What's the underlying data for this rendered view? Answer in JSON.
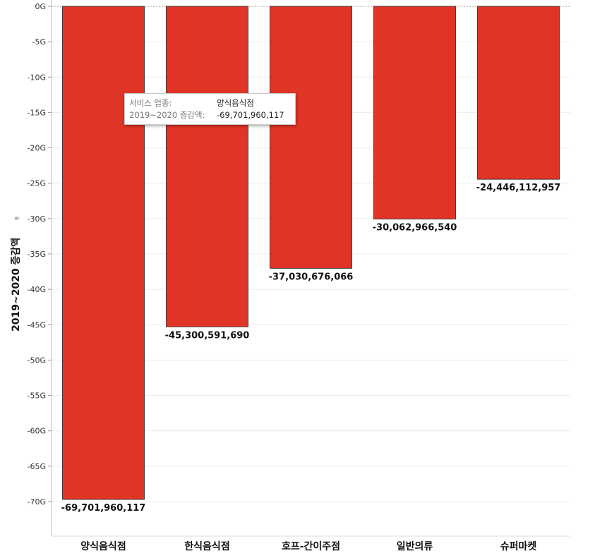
{
  "chart_data": {
    "type": "bar",
    "categories": [
      "양식음식점",
      "한식음식점",
      "호프-간이주점",
      "일반의류",
      "슈퍼마켓"
    ],
    "values": [
      -69701960117,
      -45300591690,
      -37030676066,
      -30062966540,
      -24446112957
    ],
    "value_labels": [
      "-69,701,960,117",
      "-45,300,591,690",
      "-37,030,676,066",
      "-30,062,966,540",
      "-24,446,112,957"
    ],
    "ylabel": "2019~2020 증감액",
    "ylim": [
      -70000000000,
      0
    ],
    "yticks": [
      0,
      -5,
      -10,
      -15,
      -20,
      -25,
      -30,
      -35,
      -40,
      -45,
      -50,
      -55,
      -60,
      -65,
      -70
    ],
    "ytick_labels": [
      "0G",
      "-5G",
      "-10G",
      "-15G",
      "-20G",
      "-25G",
      "-30G",
      "-35G",
      "-40G",
      "-45G",
      "-50G",
      "-55G",
      "-60G",
      "-65G",
      "-70G"
    ],
    "bar_color": "#E03526",
    "grid": true
  },
  "axis": {
    "sort_icon": "sort-icon"
  },
  "tooltip": {
    "key1": "서비스 업종:",
    "val1": "양식음식점",
    "key2": "2019~2020 증감액:",
    "val2": "-69,701,960,117"
  }
}
